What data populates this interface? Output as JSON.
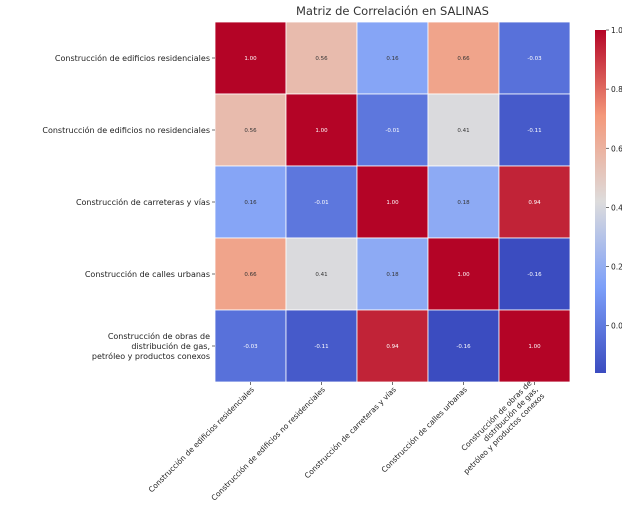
{
  "chart_data": {
    "type": "heatmap",
    "title": "Matriz de Correlación en SALINAS",
    "row_labels": [
      [
        "Construcción de edificios residenciales"
      ],
      [
        "Construcción de edificios no residenciales"
      ],
      [
        "Construcción de carreteras y vías"
      ],
      [
        "Construcción de calles urbanas"
      ],
      [
        "Construcción de obras de",
        "distribución de gas,",
        "petróleo y productos conexos"
      ]
    ],
    "col_labels": [
      [
        "Construcción de edificios residenciales"
      ],
      [
        "Construcción de edificios no residenciales"
      ],
      [
        "Construcción de carreteras y vías"
      ],
      [
        "Construcción de calles urbanas"
      ],
      [
        "Construcción de obras de",
        "distribución de gas,",
        "petróleo y productos conexos"
      ]
    ],
    "values": [
      [
        1.0,
        0.56,
        0.16,
        0.66,
        -0.03
      ],
      [
        0.56,
        1.0,
        -0.01,
        0.41,
        -0.11
      ],
      [
        0.16,
        -0.01,
        1.0,
        0.18,
        0.94
      ],
      [
        0.66,
        0.41,
        0.18,
        1.0,
        -0.16
      ],
      [
        -0.03,
        -0.11,
        0.94,
        -0.16,
        1.0
      ]
    ],
    "value_labels": [
      [
        "1.00",
        "0.56",
        "0.16",
        "0.66",
        "-0.03"
      ],
      [
        "0.56",
        "1.00",
        "-0.01",
        "0.41",
        "-0.11"
      ],
      [
        "0.16",
        "-0.01",
        "1.00",
        "0.18",
        "0.94"
      ],
      [
        "0.66",
        "0.41",
        "0.18",
        "1.00",
        "-0.16"
      ],
      [
        "-0.03",
        "-0.11",
        "0.94",
        "-0.16",
        "1.00"
      ]
    ],
    "colormap": "coolwarm",
    "vmin": -0.16,
    "vmax": 1.0,
    "colorbar_ticks": [
      1.0,
      0.8,
      0.6,
      0.4,
      0.2,
      0.0
    ],
    "colorbar_tick_labels": [
      "1.0",
      "0.8",
      "0.6",
      "0.4",
      "0.2",
      "0.0"
    ]
  }
}
